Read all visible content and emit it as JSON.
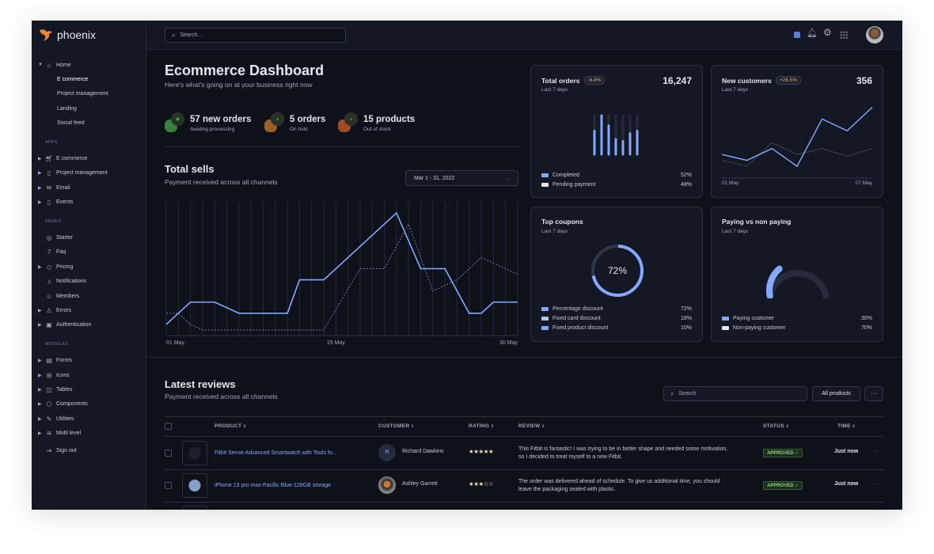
{
  "app": {
    "name": "phoenix",
    "accent": "#85a9ff",
    "logo_color": "#f0863a"
  },
  "header": {
    "search_placeholder": "Search...",
    "icons": [
      "theme-toggle-icon",
      "bell-icon",
      "gear-icon",
      "apps-grid-icon",
      "avatar"
    ]
  },
  "sidebar": {
    "home": {
      "label": "Home",
      "children": [
        "E commerce",
        "Project management",
        "Landing",
        "Social feed"
      ],
      "active": "E commerce"
    },
    "sections": [
      {
        "title": "APPS",
        "items": [
          {
            "label": "E commerce",
            "icon": "cart-icon",
            "expandable": true
          },
          {
            "label": "Project management",
            "icon": "clipboard-icon",
            "expandable": true
          },
          {
            "label": "Email",
            "icon": "mail-icon",
            "expandable": true
          },
          {
            "label": "Events",
            "icon": "clipboard-icon",
            "expandable": true
          }
        ]
      },
      {
        "title": "PAGES",
        "items": [
          {
            "label": "Starter",
            "icon": "compass-icon",
            "expandable": false
          },
          {
            "label": "Faq",
            "icon": "help-icon",
            "expandable": false
          },
          {
            "label": "Pricing",
            "icon": "tag-icon",
            "expandable": true
          },
          {
            "label": "Notifications",
            "icon": "bell-icon",
            "expandable": false
          },
          {
            "label": "Members",
            "icon": "users-icon",
            "expandable": false
          },
          {
            "label": "Errors",
            "icon": "alert-icon",
            "expandable": true
          },
          {
            "label": "Authentication",
            "icon": "lock-icon",
            "expandable": true
          }
        ]
      },
      {
        "title": "MODULES",
        "items": [
          {
            "label": "Forms",
            "icon": "file-icon",
            "expandable": true
          },
          {
            "label": "Icons",
            "icon": "grid-icon",
            "expandable": true
          },
          {
            "label": "Tables",
            "icon": "columns-icon",
            "expandable": true
          },
          {
            "label": "Components",
            "icon": "package-icon",
            "expandable": true
          },
          {
            "label": "Utilities",
            "icon": "tool-icon",
            "expandable": true
          },
          {
            "label": "Multi level",
            "icon": "layers-icon",
            "expandable": true
          }
        ]
      }
    ],
    "sign_out": "Sign out"
  },
  "dashboard": {
    "title": "Ecommerce Dashboard",
    "subtitle": "Here's what's going on at your business right now",
    "stats": [
      {
        "value": "57 new orders",
        "label": "Awating processing",
        "color": "#4caf50"
      },
      {
        "value": "5 orders",
        "label": "On hold",
        "color": "#d9822b"
      },
      {
        "value": "15 products",
        "label": "Out of stock",
        "color": "#e0622a"
      }
    ]
  },
  "total_sells": {
    "title": "Total sells",
    "subtitle": "Payment received across all channels",
    "date_range": "Mar 1 - 31, 2022"
  },
  "cards": {
    "total_orders": {
      "title": "Total orders",
      "badge": "-6.8%",
      "sub": "Last 7 days",
      "value": "16,247",
      "legend": [
        {
          "label": "Completed",
          "pct": "52%",
          "color": "#85a9ff"
        },
        {
          "label": "Pending payment",
          "pct": "48%",
          "color": "#e3e6ed"
        }
      ]
    },
    "new_customers": {
      "title": "New customers",
      "badge": "+26.5%",
      "sub": "Last 7 days",
      "value": "356",
      "x_start": "01 May",
      "x_end": "07 May"
    },
    "top_coupons": {
      "title": "Top coupons",
      "sub": "Last 7 days",
      "center": "72%",
      "legend": [
        {
          "label": "Percentage discount",
          "pct": "72%",
          "color": "#85a9ff"
        },
        {
          "label": "Fixed card discount",
          "pct": "18%",
          "color": "#b8c4e6"
        },
        {
          "label": "Fixed product discount",
          "pct": "10%",
          "color": "#85a9ff"
        }
      ]
    },
    "paying": {
      "title": "Paying vs non paying",
      "sub": "Last 7 days",
      "legend": [
        {
          "label": "Paying customer",
          "pct": "30%",
          "color": "#85a9ff"
        },
        {
          "label": "Non-paying customer",
          "pct": "70%",
          "color": "#e3e6ed"
        }
      ]
    }
  },
  "chart_data": [
    {
      "type": "line",
      "name": "total-sells",
      "x_ticks": [
        "01 May",
        "15 May",
        "30 May"
      ],
      "xlim": [
        1,
        30
      ],
      "ylim": [
        0,
        12
      ],
      "grid": "vertical",
      "series": [
        {
          "style": "solid",
          "color": "#85a9ff",
          "points": [
            [
              1,
              1
            ],
            [
              2,
              2
            ],
            [
              3,
              3
            ],
            [
              5,
              3
            ],
            [
              7,
              2
            ],
            [
              11,
              2
            ],
            [
              12,
              5
            ],
            [
              14,
              5
            ],
            [
              20,
              11
            ],
            [
              22,
              6
            ],
            [
              24,
              6
            ],
            [
              26,
              2
            ],
            [
              27,
              2
            ],
            [
              28,
              3
            ],
            [
              30,
              3
            ]
          ]
        },
        {
          "style": "dashed",
          "color": "#6e7fa8",
          "points": [
            [
              1,
              2
            ],
            [
              2,
              2
            ],
            [
              3,
              1
            ],
            [
              4,
              0.5
            ],
            [
              14,
              0.5
            ],
            [
              17,
              6
            ],
            [
              19,
              6
            ],
            [
              21,
              10
            ],
            [
              23,
              4
            ],
            [
              25,
              5
            ],
            [
              27,
              7
            ],
            [
              30,
              5.5
            ]
          ]
        }
      ]
    },
    {
      "type": "bar",
      "name": "total-orders",
      "values": [
        0.6,
        1.0,
        0.74,
        0.39,
        0.34,
        0.54,
        0.6
      ],
      "ylim": [
        0,
        1
      ]
    },
    {
      "type": "line",
      "name": "new-customers",
      "ylim": [
        0,
        13
      ],
      "series": [
        {
          "color": "#85a9ff",
          "values": [
            4,
            3,
            5,
            2,
            10,
            8,
            12
          ]
        },
        {
          "color": "#3a3f4f",
          "values": [
            3,
            2,
            6,
            4,
            5,
            3.7,
            5
          ]
        }
      ]
    },
    {
      "type": "pie",
      "name": "top-coupons",
      "values": [
        72,
        18,
        10
      ]
    },
    {
      "type": "pie",
      "name": "paying-gauge",
      "values": [
        30,
        70
      ]
    }
  ],
  "reviews": {
    "title": "Latest reviews",
    "subtitle": "Payment received across all channels",
    "search_placeholder": "Search",
    "filter": "All products",
    "more": "···",
    "columns": [
      "PRODUCT",
      "CUSTOMER",
      "RATING",
      "REVIEW",
      "STATUS",
      "TIME"
    ],
    "rows": [
      {
        "product": "Fitbit Sense Advanced Smartwatch with Tools fo...",
        "customer": "Richard Dawkins",
        "initial": "R",
        "rating": 5,
        "review": [
          "This Fitbit is fantastic! I was trying to be in better shape and needed some motivation,",
          "so I decided to treat myself to a new Fitbit."
        ],
        "status": "APPROVED ✓",
        "time": "Just now"
      },
      {
        "product": "iPhone 13 pro max-Pacific Blue-128GB storage",
        "customer": "Ashley Garrett",
        "initial": "",
        "rating": 3,
        "review": [
          "The order was delivered ahead of schedule. To give us additional time, you should",
          "leave the packaging sealed with plastic."
        ],
        "status": "APPROVED ✓",
        "time": "Just now"
      }
    ]
  }
}
